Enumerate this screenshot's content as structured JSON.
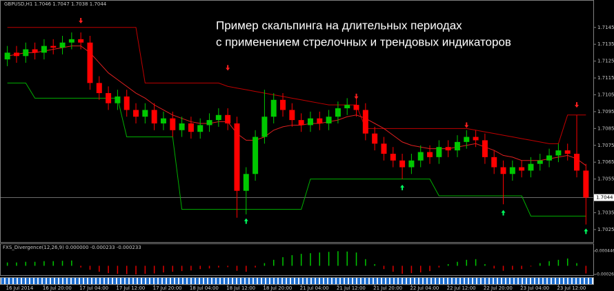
{
  "chart_data": [
    {
      "type": "candlestick",
      "header": "GBPUSD,H1  1.7046 1.7047 1.7038 1.7044",
      "title": [
        "Пример скальпинга на длительных периодах",
        "с применением стрелочных и трендовых индикаторов"
      ],
      "categories": [
        "16 Jul 2014",
        null,
        null,
        null,
        "16 Jul 20:00",
        null,
        null,
        null,
        "17 Jul 04:00",
        null,
        null,
        null,
        "17 Jul 12:00",
        null,
        null,
        null,
        "17 Jul 20:00",
        null,
        null,
        null,
        "18 Jul 04:00",
        null,
        null,
        null,
        "18 Jul 12:00",
        null,
        null,
        null,
        "18 Jul 20:00",
        null,
        null,
        null,
        "21 Jul 04:00",
        null,
        null,
        null,
        "21 Jul 12:00",
        null,
        null,
        null,
        "21 Jul 20:00",
        null,
        null,
        null,
        "22 Jul 04:00",
        null,
        null,
        null,
        "22 Jul 12:00",
        null,
        null,
        null,
        "22 Jul 20:00",
        null,
        null,
        null,
        "23 Jul 04:00",
        null,
        null,
        null,
        "23 Jul 12:00",
        null,
        null,
        null
      ],
      "open": [
        1.7126,
        1.713,
        1.7128,
        1.7132,
        1.713,
        1.7134,
        1.7133,
        1.7136,
        1.7138,
        1.7136,
        1.7112,
        1.7106,
        1.71,
        1.7104,
        1.7096,
        1.7092,
        1.7096,
        1.7088,
        1.7091,
        1.7084,
        1.7088,
        1.7083,
        1.7087,
        1.709,
        1.7093,
        1.7088,
        1.7048,
        1.7058,
        1.708,
        1.7092,
        1.7102,
        1.7096,
        1.709,
        1.7087,
        1.7091,
        1.7088,
        1.7092,
        1.7097,
        1.7099,
        1.7096,
        1.7082,
        1.7076,
        1.707,
        1.7066,
        1.7062,
        1.7066,
        1.7071,
        1.7068,
        1.7074,
        1.7072,
        1.7077,
        1.708,
        1.7078,
        1.7068,
        1.7062,
        1.7058,
        1.7062,
        1.706,
        1.7064,
        1.7066,
        1.7069,
        1.7072,
        1.707,
        1.706
      ],
      "high": [
        1.7134,
        1.7134,
        1.7136,
        1.7136,
        1.7138,
        1.7138,
        1.714,
        1.7142,
        1.7142,
        1.714,
        1.7116,
        1.711,
        1.7108,
        1.7108,
        1.71,
        1.71,
        1.71,
        1.7095,
        1.7095,
        1.7092,
        1.7092,
        1.7091,
        1.7094,
        1.7097,
        1.7097,
        1.7092,
        1.7062,
        1.7084,
        1.7108,
        1.7106,
        1.7106,
        1.71,
        1.7094,
        1.7095,
        1.7095,
        1.7096,
        1.7101,
        1.7103,
        1.7103,
        1.71,
        1.7086,
        1.708,
        1.7074,
        1.707,
        1.707,
        1.7075,
        1.7075,
        1.7078,
        1.7078,
        1.7081,
        1.7084,
        1.7084,
        1.7082,
        1.7072,
        1.7066,
        1.7066,
        1.7066,
        1.7068,
        1.707,
        1.7073,
        1.7076,
        1.7076,
        1.7093,
        1.7064
      ],
      "low": [
        1.7122,
        1.7124,
        1.7124,
        1.7126,
        1.7126,
        1.7129,
        1.7129,
        1.7132,
        1.7132,
        1.7108,
        1.7102,
        1.7096,
        1.7096,
        1.7092,
        1.7088,
        1.7088,
        1.7084,
        1.7084,
        1.708,
        1.708,
        1.7079,
        1.7079,
        1.7083,
        1.7086,
        1.7084,
        1.7032,
        1.7034,
        1.7054,
        1.7076,
        1.7088,
        1.7092,
        1.7086,
        1.7083,
        1.7083,
        1.7084,
        1.7084,
        1.7088,
        1.7093,
        1.7092,
        1.7078,
        1.7072,
        1.7066,
        1.7062,
        1.7055,
        1.7058,
        1.7062,
        1.7064,
        1.7064,
        1.7068,
        1.7068,
        1.7073,
        1.7074,
        1.7064,
        1.7058,
        1.704,
        1.7054,
        1.7056,
        1.7056,
        1.706,
        1.7062,
        1.7065,
        1.7066,
        1.7056,
        1.7028
      ],
      "close": [
        1.713,
        1.7128,
        1.7132,
        1.713,
        1.7134,
        1.7133,
        1.7136,
        1.7138,
        1.7136,
        1.7112,
        1.7106,
        1.71,
        1.7104,
        1.7096,
        1.7092,
        1.7096,
        1.7088,
        1.7091,
        1.7084,
        1.7088,
        1.7083,
        1.7087,
        1.709,
        1.7093,
        1.7088,
        1.7048,
        1.7058,
        1.708,
        1.7092,
        1.7102,
        1.7096,
        1.709,
        1.7087,
        1.7091,
        1.7088,
        1.7092,
        1.7097,
        1.7099,
        1.7096,
        1.7082,
        1.7076,
        1.707,
        1.7066,
        1.7062,
        1.7066,
        1.7071,
        1.7068,
        1.7074,
        1.7072,
        1.7077,
        1.708,
        1.7078,
        1.7068,
        1.7062,
        1.7058,
        1.7062,
        1.706,
        1.7064,
        1.7066,
        1.7069,
        1.7072,
        1.707,
        1.706,
        1.7044
      ],
      "up_color": "#00c800",
      "down_color": "#ff0000",
      "series": [
        {
          "color": "#c00000",
          "values": [
            1.7145,
            1.7145,
            1.7145,
            1.7145,
            1.7145,
            1.7145,
            1.7145,
            1.7145,
            1.7145,
            1.7145,
            1.7145,
            1.7145,
            1.7145,
            1.7145,
            1.7145,
            1.7112,
            1.7112,
            1.7112,
            1.7112,
            1.7112,
            1.7112,
            1.7112,
            1.7112,
            1.7112,
            1.711,
            1.7109,
            1.7108,
            1.7107,
            1.7106,
            1.7105,
            1.7104,
            1.7103,
            1.7102,
            1.7101,
            1.71,
            1.7099,
            1.7099,
            1.7099,
            1.7099,
            1.7085,
            1.7085,
            1.7085,
            1.7085,
            1.7085,
            1.7085,
            1.7085,
            1.7085,
            1.7085,
            1.7085,
            1.7085,
            1.7085,
            1.7084,
            1.7083,
            1.7082,
            1.7081,
            1.708,
            1.7079,
            1.7078,
            1.7077,
            1.7076,
            1.7076,
            1.7093,
            1.7093,
            1.7093
          ]
        },
        {
          "color": "#00b000",
          "values": [
            1.7112,
            1.7112,
            1.7112,
            1.7103,
            1.7103,
            1.7103,
            1.7103,
            1.7103,
            1.7103,
            1.7103,
            1.7103,
            1.7103,
            1.7103,
            1.708,
            1.708,
            1.708,
            1.708,
            1.708,
            1.708,
            1.7037,
            1.7037,
            1.7037,
            1.7037,
            1.7037,
            1.7037,
            1.7037,
            1.7037,
            1.7037,
            1.7037,
            1.7037,
            1.7037,
            1.7037,
            1.7037,
            1.7055,
            1.7055,
            1.7055,
            1.7055,
            1.7055,
            1.7055,
            1.7055,
            1.7055,
            1.7055,
            1.7055,
            1.7055,
            1.7055,
            1.7055,
            1.7055,
            1.7045,
            1.7045,
            1.7045,
            1.7045,
            1.7045,
            1.7045,
            1.7045,
            1.7045,
            1.7045,
            1.7045,
            1.7033,
            1.7033,
            1.7033,
            1.7033,
            1.7033,
            1.7033,
            1.7033
          ]
        },
        {
          "color": "#e02020",
          "values": [
            1.7128,
            1.7129,
            1.713,
            1.713,
            1.7131,
            1.7132,
            1.7133,
            1.7134,
            1.7134,
            1.713,
            1.7124,
            1.7118,
            1.7114,
            1.711,
            1.7106,
            1.7103,
            1.7099,
            1.7096,
            1.7093,
            1.7091,
            1.7089,
            1.7088,
            1.7088,
            1.7089,
            1.7089,
            1.7082,
            1.7078,
            1.7078,
            1.708,
            1.7084,
            1.7086,
            1.7087,
            1.7087,
            1.7088,
            1.7088,
            1.7089,
            1.709,
            1.7092,
            1.7093,
            1.7091,
            1.7088,
            1.7085,
            1.7081,
            1.7077,
            1.7075,
            1.7074,
            1.7073,
            1.7073,
            1.7073,
            1.7074,
            1.7075,
            1.7076,
            1.7074,
            1.7072,
            1.7069,
            1.7068,
            1.7066,
            1.7066,
            1.7066,
            1.7067,
            1.7068,
            1.7069,
            1.7067,
            1.7063
          ]
        }
      ],
      "sell_arrows": {
        "x": [
          8,
          24,
          38,
          50,
          62
        ],
        "y": [
          1.7149,
          1.7121,
          1.7104,
          1.7087,
          1.7099
        ],
        "color": "#ff2020"
      },
      "buy_arrows": {
        "x": [
          26,
          43,
          54,
          63
        ],
        "y": [
          1.703,
          1.705,
          1.7035,
          1.7024
        ],
        "color": "#00ff60"
      },
      "last_price": 1.7044,
      "ylim": [
        1.7018,
        1.7158
      ],
      "yticks": [
        1.7145,
        1.7135,
        1.7125,
        1.7115,
        1.7105,
        1.7095,
        1.7085,
        1.7075,
        1.7065,
        1.7055,
        1.7035,
        1.7025
      ]
    },
    {
      "type": "bar",
      "header": "FXS_Divergence(12,26,9) 0.000000 -0.000233 -0.000233",
      "values": [
        0.0001,
        0.0001,
        0.00012,
        0.00012,
        0.00014,
        0.00014,
        0.00015,
        0.00016,
        -5e-05,
        -0.00012,
        -0.00018,
        -0.00022,
        -0.00024,
        -0.00025,
        -0.00026,
        -0.00024,
        -0.00023,
        -0.0002,
        -0.00018,
        -0.00016,
        -0.00014,
        -0.0001,
        -8e-05,
        -5e-05,
        -4e-05,
        -0.00015,
        -0.00018,
        -5e-05,
        8e-05,
        0.00018,
        0.00026,
        0.00032,
        0.00036,
        0.00038,
        0.0004,
        0.00042,
        0.00044,
        0.00043,
        0.0004,
        0.0002,
        5e-05,
        -0.0001,
        -0.00018,
        -0.00024,
        -0.00022,
        -0.0002,
        -0.00016,
        -5e-05,
        5e-05,
        0.00012,
        0.00018,
        0.0002,
        5e-05,
        -8e-05,
        -0.00015,
        -0.00012,
        -0.0001,
        -2e-05,
        8e-05,
        0.00014,
        0.00018,
        0.00022,
        8e-05,
        -0.00023
      ],
      "positive_color": "#00c800",
      "negative_color": "#e00000",
      "ylim": [
        -0.000261,
        0.000446
      ],
      "yticks": [
        0.000446,
        -0.000261
      ]
    }
  ]
}
